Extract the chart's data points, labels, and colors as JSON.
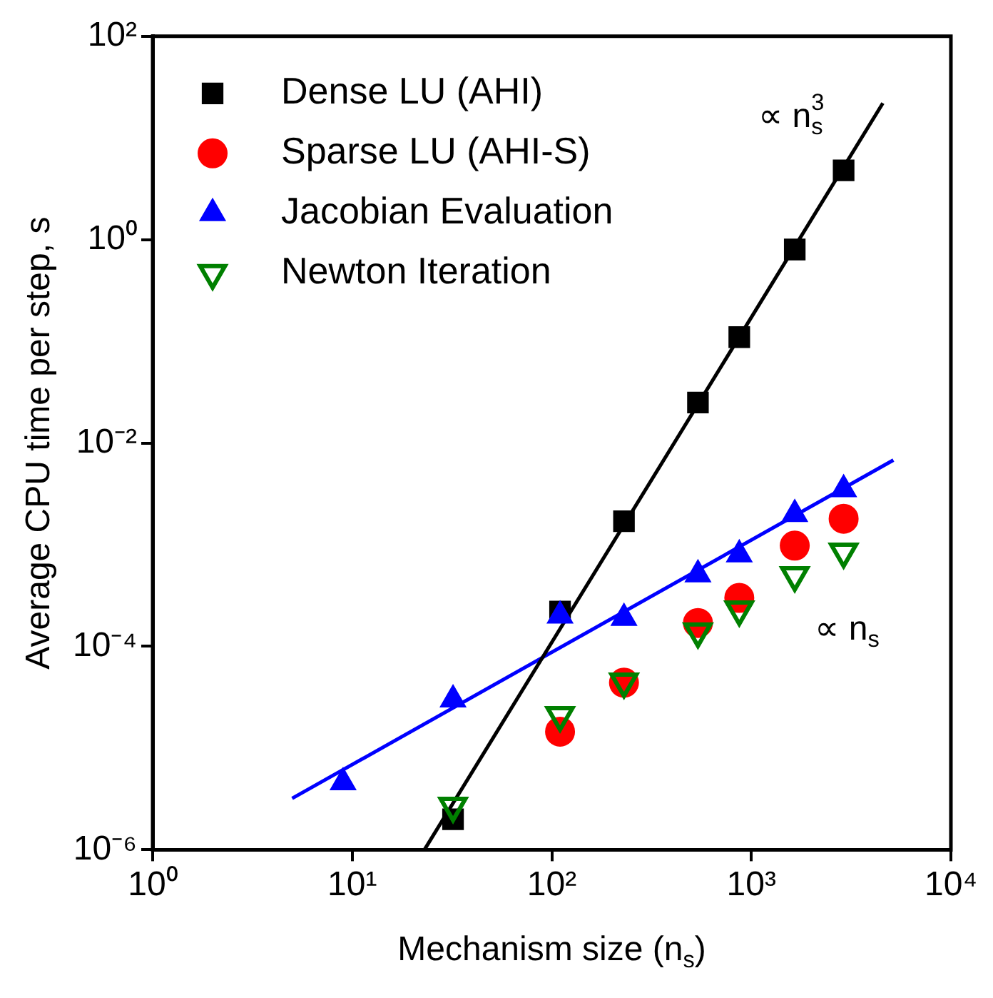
{
  "chart_data": {
    "type": "scatter",
    "xlabel": "Mechanism size (n$_{s}$)",
    "ylabel": "Average CPU time per step, s",
    "xlim": [
      1,
      10000
    ],
    "xticks": [
      {
        "value": 1,
        "label": "10⁰"
      },
      {
        "value": 10,
        "label": "10¹"
      },
      {
        "value": 100,
        "label": "10²"
      },
      {
        "value": 1000,
        "label": "10³"
      },
      {
        "value": 10000,
        "label": "10⁴"
      }
    ],
    "ylim": [
      1e-06,
      100
    ],
    "yticks": [
      {
        "value": 1e-06,
        "label": "10⁻⁶"
      },
      {
        "value": 0.0001,
        "label": "10⁻⁴"
      },
      {
        "value": 0.01,
        "label": "10⁻²"
      },
      {
        "value": 1,
        "label": "10⁰"
      },
      {
        "value": 100,
        "label": "10²"
      }
    ],
    "log": "xy",
    "grid": false,
    "legend": "top left",
    "series": [
      {
        "name": "Dense LU (AHI)",
        "color": "#000000",
        "marker": "square",
        "x": [
          32,
          110,
          230,
          540,
          870,
          1650,
          2900
        ],
        "values": [
          2e-06,
          0.00022,
          0.0017,
          0.025,
          0.11,
          0.8,
          4.8
        ]
      },
      {
        "name": "Sparse LU (AHI-S)",
        "color": "#ff0000",
        "marker": "circle",
        "x": [
          110,
          230,
          540,
          870,
          1650,
          2900
        ],
        "values": [
          1.45e-05,
          4.4e-05,
          0.00017,
          0.0003,
          0.00098,
          0.0018
        ]
      },
      {
        "name": "Jacobian Evaluation",
        "color": "#0000ff",
        "marker": "triangle",
        "x": [
          9,
          32,
          110,
          230,
          540,
          870,
          1650,
          2900
        ],
        "values": [
          4.6e-06,
          3e-05,
          0.0002,
          0.00019,
          0.00051,
          0.0008,
          0.002,
          0.0035
        ]
      },
      {
        "name": "Newton Iteration",
        "color": "#008000",
        "marker": "triangle_down",
        "x": [
          32,
          110,
          230,
          540,
          870,
          1650,
          2900
        ],
        "values": [
          2.7e-06,
          2.1e-05,
          4.5e-05,
          0.00014,
          0.00023,
          0.0005,
          0.00085
        ]
      },
      {
        "type": "line",
        "color": "#000000",
        "marker": "none",
        "x": [
          23,
          4560
        ],
        "values": [
          1e-06,
          22
        ]
      },
      {
        "type": "line",
        "color": "#0000ff",
        "marker": "none",
        "x": [
          5,
          5150
        ],
        "values": [
          3.2e-06,
          0.0068
        ]
      }
    ],
    "annotations": [
      "∝ n$_{s}$$^{3}$",
      "∝ n$_{s}$"
    ]
  }
}
